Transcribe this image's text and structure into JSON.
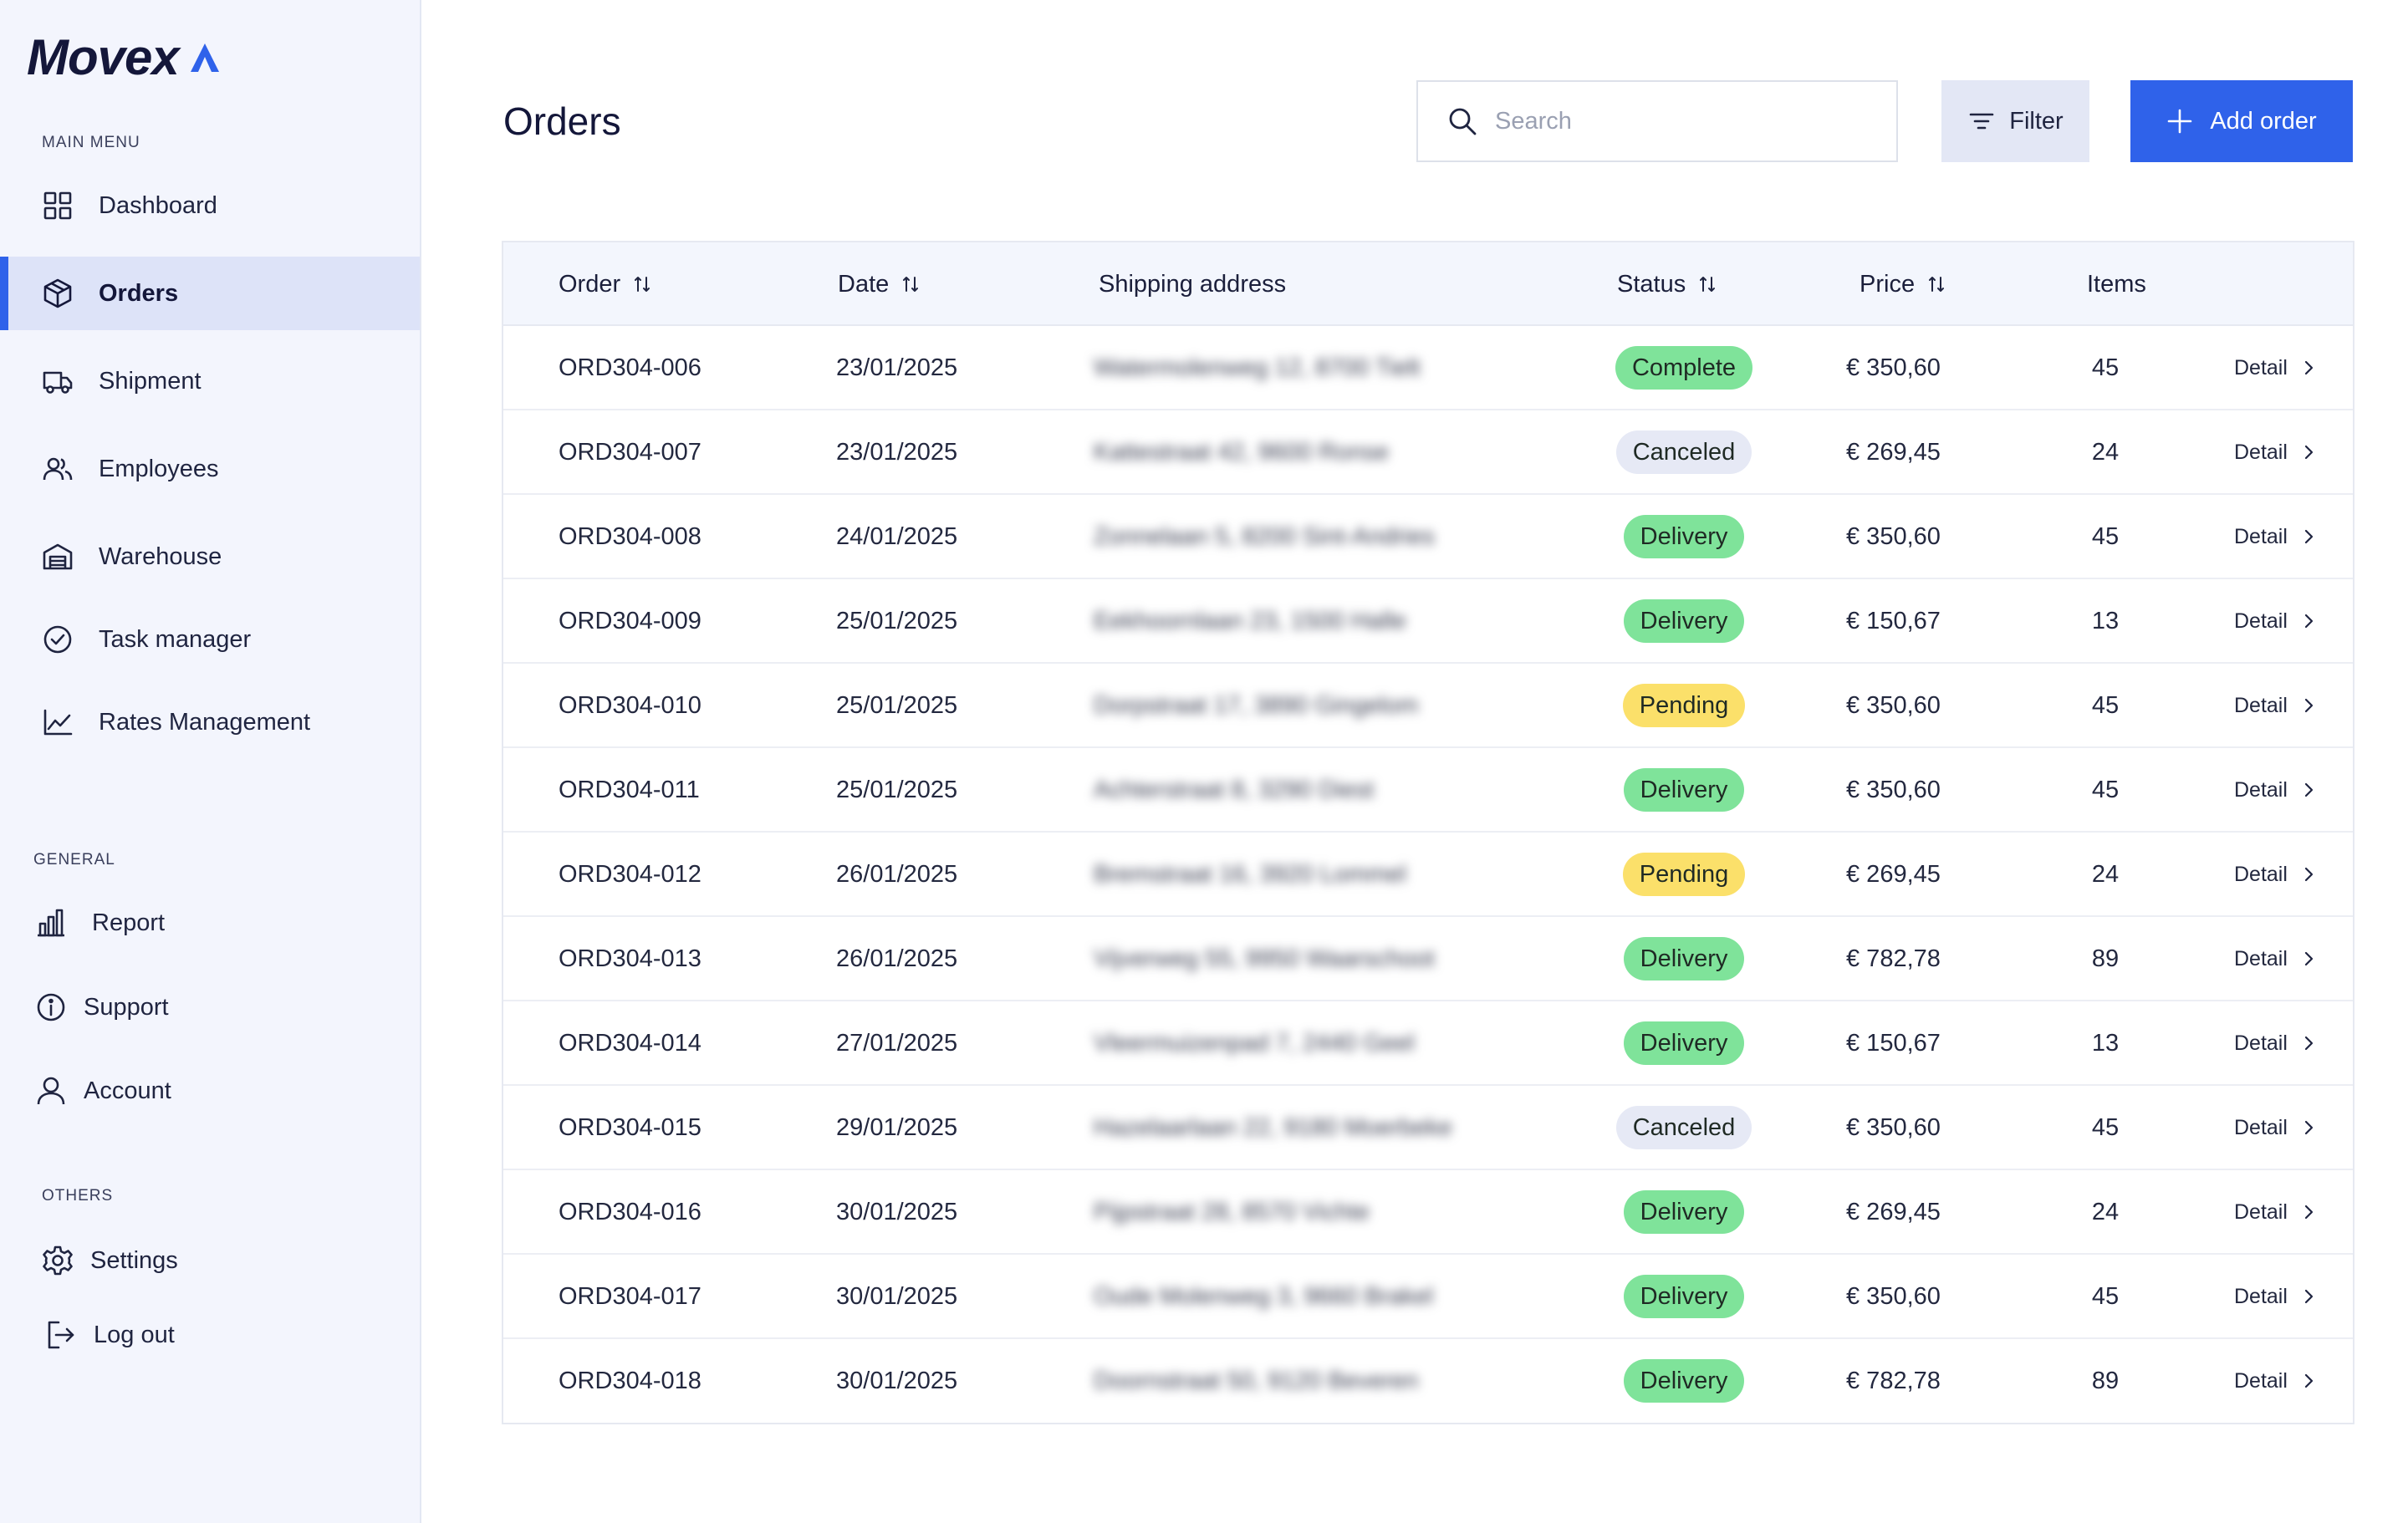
{
  "brand": {
    "name": "Movex"
  },
  "sidebar": {
    "sections": [
      {
        "label": "MAIN MENU"
      },
      {
        "label": "GENERAL"
      },
      {
        "label": "OTHERS"
      }
    ],
    "main_items": [
      {
        "label": "Dashboard",
        "icon": "dashboard-icon"
      },
      {
        "label": "Orders",
        "icon": "box-icon",
        "active": true
      },
      {
        "label": "Shipment",
        "icon": "truck-icon"
      },
      {
        "label": "Employees",
        "icon": "users-icon"
      },
      {
        "label": "Warehouse",
        "icon": "warehouse-icon"
      },
      {
        "label": "Task manager",
        "icon": "check-circle-icon"
      },
      {
        "label": "Rates Management",
        "icon": "line-chart-icon"
      }
    ],
    "general_items": [
      {
        "label": "Report",
        "icon": "bar-chart-icon"
      },
      {
        "label": "Support",
        "icon": "info-icon"
      },
      {
        "label": "Account",
        "icon": "user-icon"
      }
    ],
    "other_items": [
      {
        "label": "Settings",
        "icon": "gear-icon"
      },
      {
        "label": "Log out",
        "icon": "logout-icon"
      }
    ]
  },
  "header": {
    "title": "Orders",
    "search_placeholder": "Search",
    "filter_label": "Filter",
    "add_label": "Add order"
  },
  "colors": {
    "accent": "#2f62ea",
    "status_green": "#7fe39a",
    "status_yellow": "#fbe06a",
    "status_gray": "#e6e9f5"
  },
  "table": {
    "columns": [
      "Order",
      "Date",
      "Shipping address",
      "Status",
      "Price",
      "Items"
    ],
    "detail_label": "Detail",
    "rows": [
      {
        "order": "ORD304-006",
        "date": "23/01/2025",
        "address": "Watermolenweg 12, 8700 Tielt",
        "status": "Complete",
        "price": "€ 350,60",
        "items": "45"
      },
      {
        "order": "ORD304-007",
        "date": "23/01/2025",
        "address": "Kattestraat 42, 9600 Ronse",
        "status": "Canceled",
        "price": "€ 269,45",
        "items": "24"
      },
      {
        "order": "ORD304-008",
        "date": "24/01/2025",
        "address": "Zonnelaan 5, 8200 Sint-Andries",
        "status": "Delivery",
        "price": "€ 350,60",
        "items": "45"
      },
      {
        "order": "ORD304-009",
        "date": "25/01/2025",
        "address": "Eekhoornlaan 23, 1500 Halle",
        "status": "Delivery",
        "price": "€ 150,67",
        "items": "13"
      },
      {
        "order": "ORD304-010",
        "date": "25/01/2025",
        "address": "Dorpstraat 17, 3890 Gingelom",
        "status": "Pending",
        "price": "€ 350,60",
        "items": "45"
      },
      {
        "order": "ORD304-011",
        "date": "25/01/2025",
        "address": "Achterstraat 8, 3290 Diest",
        "status": "Delivery",
        "price": "€ 350,60",
        "items": "45"
      },
      {
        "order": "ORD304-012",
        "date": "26/01/2025",
        "address": "Bremstraat 16, 3920 Lommel",
        "status": "Pending",
        "price": "€ 269,45",
        "items": "24"
      },
      {
        "order": "ORD304-013",
        "date": "26/01/2025",
        "address": "Vijverweg 55, 9950 Waarschoot",
        "status": "Delivery",
        "price": "€ 782,78",
        "items": "89"
      },
      {
        "order": "ORD304-014",
        "date": "27/01/2025",
        "address": "Vleermuizenpad 7, 2440 Geel",
        "status": "Delivery",
        "price": "€ 150,67",
        "items": "13"
      },
      {
        "order": "ORD304-015",
        "date": "29/01/2025",
        "address": "Hazelaarlaan 22, 9180 Moerbeke",
        "status": "Canceled",
        "price": "€ 350,60",
        "items": "45"
      },
      {
        "order": "ORD304-016",
        "date": "30/01/2025",
        "address": "Pijpstraat 28, 8570 Vichte",
        "status": "Delivery",
        "price": "€ 269,45",
        "items": "24"
      },
      {
        "order": "ORD304-017",
        "date": "30/01/2025",
        "address": "Oude Molenweg 3, 9660 Brakel",
        "status": "Delivery",
        "price": "€ 350,60",
        "items": "45"
      },
      {
        "order": "ORD304-018",
        "date": "30/01/2025",
        "address": "Doornstraat 50, 9120 Beveren",
        "status": "Delivery",
        "price": "€ 782,78",
        "items": "89"
      }
    ]
  }
}
